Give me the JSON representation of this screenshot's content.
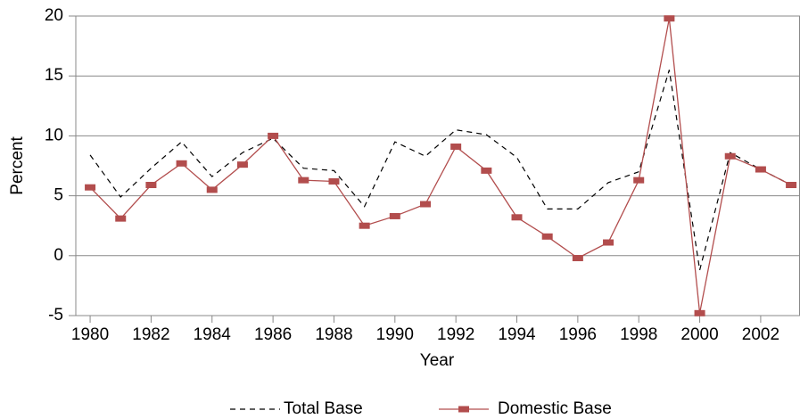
{
  "chart_data": {
    "type": "line",
    "x_label": "Year",
    "y_label": "Percent",
    "x": [
      1980,
      1981,
      1982,
      1983,
      1984,
      1985,
      1986,
      1987,
      1988,
      1989,
      1990,
      1991,
      1992,
      1993,
      1994,
      1995,
      1996,
      1997,
      1998,
      1999,
      2000,
      2001,
      2002,
      2003
    ],
    "series": [
      {
        "name": "Total Base",
        "color": "#000000",
        "dashed": true,
        "values": [
          8.4,
          4.9,
          7.3,
          9.5,
          6.6,
          8.6,
          9.8,
          7.3,
          7.1,
          4.1,
          9.5,
          8.3,
          10.5,
          10.1,
          8.2,
          3.9,
          3.9,
          6.1,
          7.0,
          15.5,
          -1.2,
          8.6,
          7.2,
          5.9
        ]
      },
      {
        "name": "Domestic Base",
        "color": "#b24d4d",
        "dashed": false,
        "markers": true,
        "values": [
          5.7,
          3.1,
          5.9,
          7.7,
          5.5,
          7.6,
          10.0,
          6.3,
          6.2,
          2.5,
          3.3,
          4.3,
          9.1,
          7.1,
          3.2,
          1.6,
          -0.2,
          1.1,
          6.3,
          19.8,
          -4.8,
          8.3,
          7.2,
          5.9
        ]
      }
    ],
    "xlim": [
      1979.53,
      2003.29
    ],
    "xticks": [
      1980,
      1982,
      1984,
      1986,
      1988,
      1990,
      1992,
      1994,
      1996,
      1998,
      2000,
      2002
    ],
    "ylim": [
      -5,
      20
    ],
    "yticks": [
      -5,
      0,
      5,
      10,
      15,
      20
    ],
    "grid": true
  }
}
